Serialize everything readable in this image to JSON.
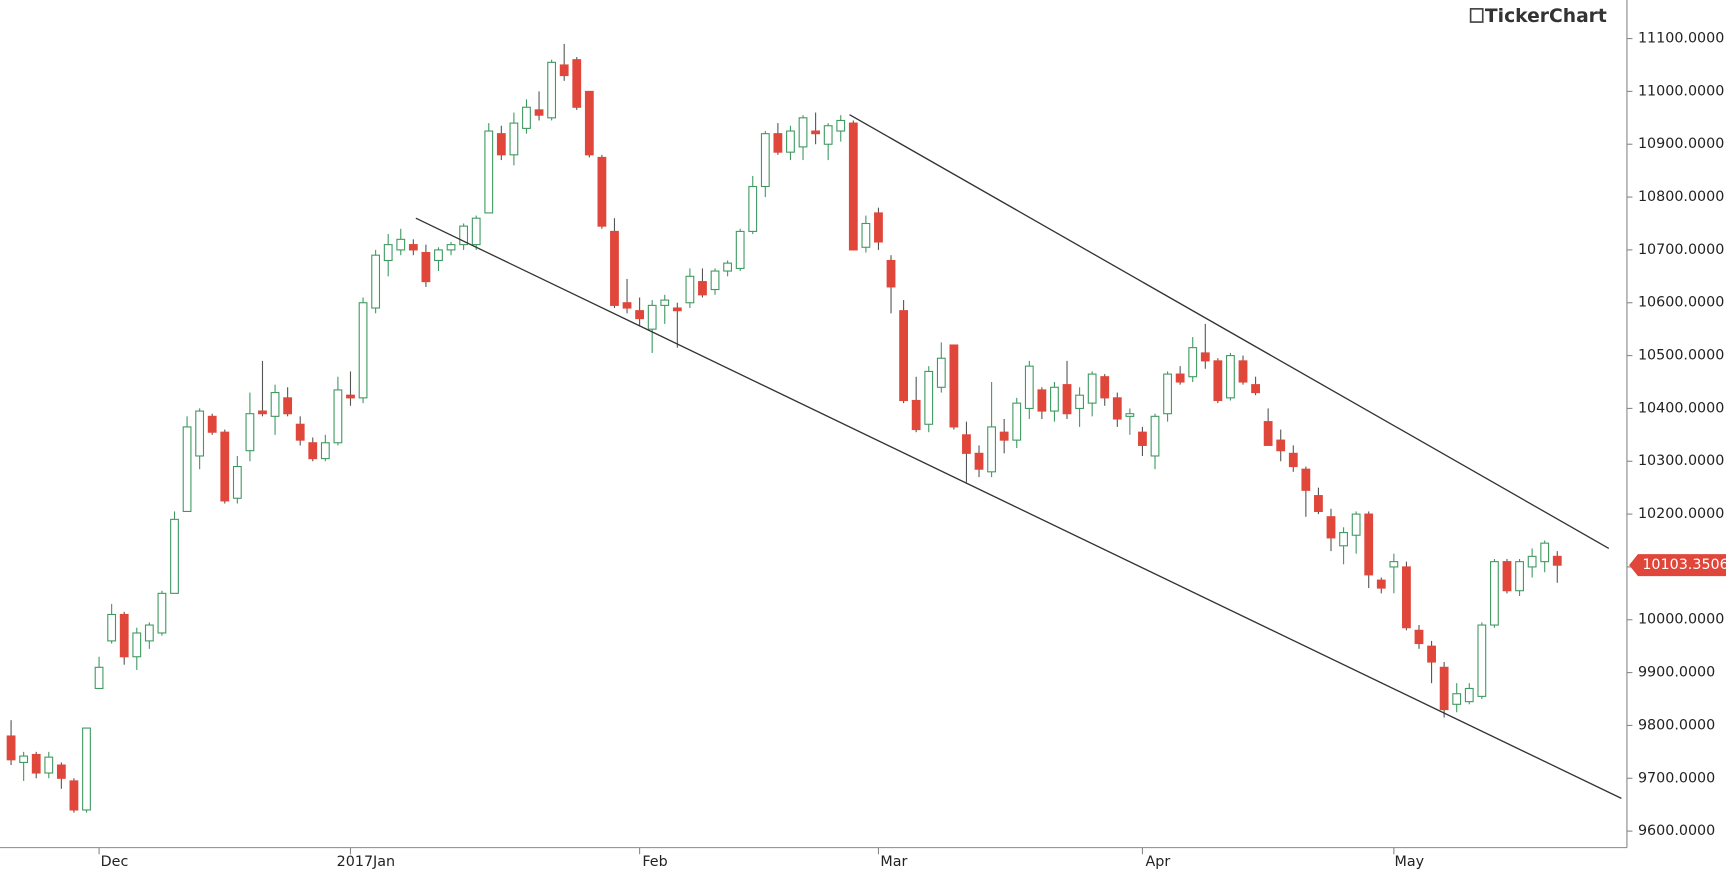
{
  "chart_data": {
    "type": "candlestick",
    "logo": "TickerChart",
    "categories": [
      null,
      null,
      null,
      null,
      null,
      null,
      null,
      "Dec",
      null,
      null,
      null,
      null,
      null,
      null,
      null,
      null,
      null,
      null,
      null,
      null,
      null,
      null,
      null,
      null,
      null,
      null,
      null,
      "2017Jan",
      null,
      null,
      null,
      null,
      null,
      null,
      null,
      null,
      null,
      null,
      null,
      null,
      null,
      null,
      null,
      null,
      null,
      null,
      null,
      null,
      null,
      null,
      "Feb",
      null,
      null,
      null,
      null,
      null,
      null,
      null,
      null,
      null,
      null,
      null,
      null,
      null,
      null,
      null,
      null,
      null,
      null,
      "Mar",
      null,
      null,
      null,
      null,
      null,
      null,
      null,
      null,
      null,
      null,
      null,
      null,
      null,
      null,
      null,
      null,
      null,
      null,
      null,
      null,
      "Apr",
      null,
      null,
      null,
      null,
      null,
      null,
      null,
      null,
      null,
      null,
      null,
      null,
      null,
      null,
      null,
      null,
      null,
      null,
      null,
      "May",
      null,
      null,
      null,
      null,
      null,
      null,
      null,
      null,
      null,
      null,
      null,
      null,
      null
    ],
    "open": [
      9780,
      9730,
      9745,
      9710,
      9725,
      9695,
      9640,
      9870,
      9960,
      10010,
      9930,
      9960,
      9975,
      10050,
      10205,
      10310,
      10385,
      10355,
      10230,
      10320,
      10395,
      10385,
      10420,
      10370,
      10335,
      10305,
      10335,
      10425,
      10420,
      10590,
      10680,
      10700,
      10710,
      10695,
      10680,
      10700,
      10710,
      10710,
      10770,
      10920,
      10880,
      10930,
      10965,
      10950,
      11050,
      11060,
      11000,
      10875,
      10735,
      10600,
      10585,
      10550,
      10595,
      10590,
      10600,
      10640,
      10625,
      10660,
      10665,
      10735,
      10820,
      10920,
      10885,
      10895,
      10925,
      10900,
      10925,
      10940,
      10705,
      10770,
      10680,
      10585,
      10415,
      10370,
      10440,
      10520,
      10350,
      10315,
      10280,
      10355,
      10340,
      10400,
      10435,
      10395,
      10445,
      10400,
      10410,
      10460,
      10420,
      10385,
      10355,
      10310,
      10390,
      10465,
      10460,
      10505,
      10490,
      10420,
      10490,
      10445,
      10375,
      10340,
      10315,
      10285,
      10235,
      10195,
      10140,
      10160,
      10200,
      10075,
      10100,
      10100,
      9980,
      9950,
      9910,
      9840,
      9845,
      9855,
      9990,
      10110,
      10055,
      10100,
      10110,
      10120
    ],
    "high": [
      9810,
      9750,
      9750,
      9750,
      9730,
      9700,
      9795,
      9930,
      10030,
      10015,
      9985,
      9995,
      10055,
      10205,
      10385,
      10400,
      10390,
      10360,
      10310,
      10430,
      10490,
      10445,
      10440,
      10385,
      10345,
      10350,
      10460,
      10470,
      10610,
      10700,
      10730,
      10740,
      10720,
      10710,
      10705,
      10715,
      10750,
      10765,
      10940,
      10935,
      10960,
      10985,
      11000,
      11060,
      11090,
      11065,
      11000,
      10880,
      10760,
      10645,
      10610,
      10605,
      10615,
      10600,
      10665,
      10665,
      10665,
      10680,
      10740,
      10840,
      10925,
      10940,
      10935,
      10955,
      10960,
      10940,
      10955,
      10945,
      10765,
      10780,
      10690,
      10605,
      10460,
      10480,
      10525,
      10520,
      10375,
      10330,
      10450,
      10380,
      10420,
      10490,
      10440,
      10450,
      10490,
      10440,
      10470,
      10465,
      10430,
      10400,
      10365,
      10390,
      10470,
      10480,
      10535,
      10560,
      10495,
      10505,
      10500,
      10460,
      10400,
      10360,
      10330,
      10290,
      10250,
      10210,
      10175,
      10205,
      10205,
      10080,
      10125,
      10110,
      9990,
      9960,
      9920,
      9880,
      9880,
      9995,
      10115,
      10115,
      10115,
      10135,
      10150,
      10130
    ],
    "low": [
      9725,
      9695,
      9700,
      9700,
      9680,
      9635,
      9635,
      9870,
      9955,
      9915,
      9905,
      9945,
      9970,
      10050,
      10205,
      10285,
      10350,
      10220,
      10220,
      10300,
      10385,
      10350,
      10385,
      10330,
      10300,
      10300,
      10330,
      10405,
      10410,
      10580,
      10650,
      10690,
      10690,
      10630,
      10660,
      10690,
      10700,
      10700,
      10770,
      10870,
      10860,
      10920,
      10945,
      10945,
      11020,
      10965,
      10875,
      10740,
      10590,
      10580,
      10555,
      10505,
      10560,
      10515,
      10590,
      10610,
      10615,
      10650,
      10660,
      10730,
      10800,
      10880,
      10870,
      10870,
      10900,
      10870,
      10905,
      10700,
      10695,
      10700,
      10580,
      10410,
      10355,
      10355,
      10430,
      10360,
      10260,
      10270,
      10270,
      10315,
      10325,
      10380,
      10380,
      10375,
      10380,
      10365,
      10385,
      10405,
      10365,
      10350,
      10310,
      10285,
      10375,
      10445,
      10450,
      10475,
      10410,
      10415,
      10445,
      10425,
      10330,
      10300,
      10280,
      10195,
      10200,
      10130,
      10105,
      10125,
      10060,
      10050,
      10050,
      9980,
      9945,
      9880,
      9815,
      9825,
      9840,
      9850,
      9985,
      10050,
      10045,
      10080,
      10090,
      10070
    ],
    "close": [
      9735,
      9742,
      9710,
      9740,
      9700,
      9640,
      9795,
      9910,
      10010,
      9930,
      9975,
      9990,
      10050,
      10190,
      10365,
      10395,
      10355,
      10225,
      10290,
      10390,
      10390,
      10430,
      10390,
      10340,
      10305,
      10335,
      10435,
      10420,
      10600,
      10690,
      10710,
      10720,
      10700,
      10640,
      10700,
      10710,
      10745,
      10760,
      10925,
      10880,
      10940,
      10970,
      10955,
      11055,
      11030,
      10970,
      10880,
      10745,
      10595,
      10590,
      10570,
      10595,
      10605,
      10585,
      10650,
      10615,
      10660,
      10675,
      10735,
      10820,
      10920,
      10885,
      10925,
      10950,
      10920,
      10935,
      10945,
      10700,
      10750,
      10715,
      10630,
      10415,
      10360,
      10470,
      10495,
      10365,
      10315,
      10285,
      10365,
      10340,
      10410,
      10480,
      10395,
      10440,
      10390,
      10425,
      10465,
      10420,
      10380,
      10390,
      10330,
      10385,
      10465,
      10450,
      10515,
      10490,
      10415,
      10500,
      10450,
      10430,
      10330,
      10320,
      10290,
      10245,
      10205,
      10155,
      10165,
      10200,
      10085,
      10060,
      10110,
      9985,
      9955,
      9920,
      9830,
      9860,
      9870,
      9990,
      10110,
      10055,
      10110,
      10120,
      10145,
      10103.3506
    ],
    "up_color": "#3f9a62",
    "down_color": "#e0463a",
    "ylim": [
      9520.8,
      11172.9
    ],
    "yticks": [
      {
        "value": 9600,
        "label": "9600.0000"
      },
      {
        "value": 9700,
        "label": "9700.0000"
      },
      {
        "value": 9800,
        "label": "9800.0000"
      },
      {
        "value": 9900,
        "label": "9900.0000"
      },
      {
        "value": 10000,
        "label": "10000.0000"
      },
      {
        "value": 10100,
        "label": "10100.0000"
      },
      {
        "value": 10200,
        "label": "10200.0000"
      },
      {
        "value": 10300,
        "label": "10300.0000"
      },
      {
        "value": 10400,
        "label": "10400.0000"
      },
      {
        "value": 10500,
        "label": "10500.0000"
      },
      {
        "value": 10600,
        "label": "10600.0000"
      },
      {
        "value": 10700,
        "label": "10700.0000"
      },
      {
        "value": 10800,
        "label": "10800.0000"
      },
      {
        "value": 10900,
        "label": "10900.0000"
      },
      {
        "value": 11000,
        "label": "11000.0000"
      },
      {
        "value": 11100,
        "label": "11100.0000"
      }
    ],
    "trendlines": [
      {
        "x": [
          66.7,
          127.1
        ],
        "y": [
          10956,
          10135
        ]
      },
      {
        "x": [
          32.2,
          128.1
        ],
        "y": [
          10760,
          9662
        ]
      }
    ],
    "grid": false
  }
}
